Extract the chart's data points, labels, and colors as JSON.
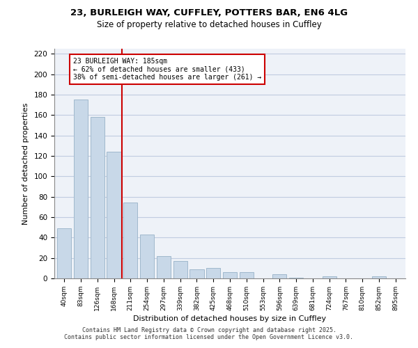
{
  "title_line1": "23, BURLEIGH WAY, CUFFLEY, POTTERS BAR, EN6 4LG",
  "title_line2": "Size of property relative to detached houses in Cuffley",
  "xlabel": "Distribution of detached houses by size in Cuffley",
  "ylabel": "Number of detached properties",
  "bar_values": [
    49,
    175,
    158,
    124,
    74,
    43,
    22,
    17,
    9,
    10,
    6,
    6,
    0,
    4,
    1,
    0,
    2,
    0,
    0,
    2
  ],
  "bar_labels": [
    "40sqm",
    "83sqm",
    "126sqm",
    "168sqm",
    "211sqm",
    "254sqm",
    "297sqm",
    "339sqm",
    "382sqm",
    "425sqm",
    "468sqm",
    "510sqm",
    "553sqm",
    "596sqm",
    "639sqm",
    "681sqm",
    "724sqm",
    "767sqm",
    "810sqm",
    "852sqm",
    "895sqm"
  ],
  "bar_color": "#c8d8e8",
  "bar_edgecolor": "#a0b8cc",
  "vline_x": 3.5,
  "vline_color": "#cc0000",
  "annotation_text": "23 BURLEIGH WAY: 185sqm\n← 62% of detached houses are smaller (433)\n38% of semi-detached houses are larger (261) →",
  "annotation_box_edgecolor": "#cc0000",
  "annotation_box_facecolor": "#ffffff",
  "ylim": [
    0,
    225
  ],
  "yticks": [
    0,
    20,
    40,
    60,
    80,
    100,
    120,
    140,
    160,
    180,
    200,
    220
  ],
  "grid_color": "#c0cce0",
  "bg_color": "#eef2f8",
  "footer_line1": "Contains HM Land Registry data © Crown copyright and database right 2025.",
  "footer_line2": "Contains public sector information licensed under the Open Government Licence v3.0."
}
